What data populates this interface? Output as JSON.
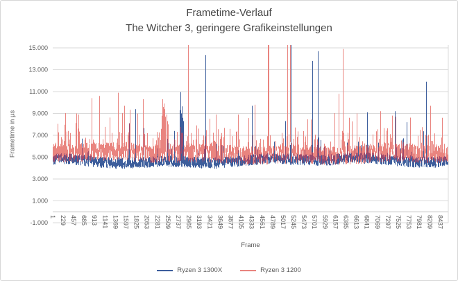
{
  "chart_data": {
    "type": "line",
    "title": "Frametime-Verlauf",
    "subtitle": "The Witcher 3, geringere Grafikeinstellungen",
    "xlabel": "Frame",
    "ylabel": "Frametime in µs",
    "x_ticks": [
      "1",
      "229",
      "457",
      "685",
      "913",
      "1141",
      "1369",
      "1597",
      "1825",
      "2053",
      "2281",
      "2509",
      "2737",
      "2965",
      "3193",
      "3421",
      "3649",
      "3877",
      "4105",
      "4333",
      "4561",
      "4789",
      "5017",
      "5245",
      "5473",
      "5701",
      "5929",
      "6157",
      "6385",
      "6613",
      "6841",
      "7069",
      "7297",
      "7525",
      "7753",
      "7981",
      "8209",
      "8437"
    ],
    "x_tick_step": 228,
    "x_range": [
      1,
      8608
    ],
    "y_ticks": [
      [
        15000,
        "15.000"
      ],
      [
        13000,
        "13.000"
      ],
      [
        11000,
        "11.000"
      ],
      [
        9000,
        "9.000"
      ],
      [
        7000,
        "7.000"
      ],
      [
        5000,
        "5.000"
      ],
      [
        3000,
        "3.000"
      ],
      [
        1000,
        "1.000"
      ],
      [
        -1000,
        "-1.000"
      ]
    ],
    "ylim": [
      -1000,
      15000
    ],
    "y_tick_interval": 2000,
    "grid": true,
    "legend_position": "bottom",
    "clip_value": 15254,
    "sampling_step": 4,
    "seed": 42,
    "grid_color": "#d9d9d9",
    "axis_color": "#c3c3c3",
    "text_color": "#595959",
    "overlap_color": "#9a4a6e",
    "series": [
      {
        "name": "Ryzen 3 1300X",
        "color": "#3d5e9c",
        "gen": {
          "mean": 4620,
          "wander": [
            [
              170,
              0.0035,
              2.6
            ],
            [
              110,
              0.0115,
              0.7
            ]
          ],
          "noise": 1050,
          "bias": 0.45,
          "minor_spikes": [
            {
              "p": 0.02,
              "min": 400,
              "max": 1700
            },
            {
              "p": 0.006,
              "min": 1500,
              "max": 2900
            }
          ]
        },
        "spikes": [
          [
            1661,
            8100
          ],
          [
            1797,
            9400
          ],
          [
            2640,
            7400
          ],
          [
            2763,
            9300
          ],
          [
            2790,
            10950
          ],
          [
            2803,
            9000
          ],
          [
            2815,
            9650
          ],
          [
            2830,
            8600
          ],
          [
            2850,
            8300
          ],
          [
            3322,
            14350
          ],
          [
            4333,
            9700
          ],
          [
            5060,
            8300
          ],
          [
            5178,
            15254
          ],
          [
            5647,
            13800
          ],
          [
            5768,
            14700
          ],
          [
            6840,
            9100
          ],
          [
            7444,
            9200
          ],
          [
            7700,
            8200
          ],
          [
            8124,
            11900
          ]
        ]
      },
      {
        "name": "Ryzen 3 1200",
        "color": "#e9847f",
        "gen": {
          "mean": 5420,
          "wander": [
            [
              140,
              0.0029,
              0.9
            ],
            [
              90,
              0.0127,
              3.8
            ]
          ],
          "noise": 1750,
          "bias": 0.55,
          "minor_spikes": [
            {
              "p": 0.1,
              "min": 350,
              "max": 1800
            },
            {
              "p": 0.02,
              "min": 1700,
              "max": 3400
            }
          ]
        },
        "spikes": [
          [
            513,
            9000
          ],
          [
            846,
            10400
          ],
          [
            1012,
            10600
          ],
          [
            1424,
            10900
          ],
          [
            1566,
            9700
          ],
          [
            1963,
            10300
          ],
          [
            2380,
            8800
          ],
          [
            2395,
            10300
          ],
          [
            2405,
            9600
          ],
          [
            2415,
            9900
          ],
          [
            2428,
            9200
          ],
          [
            2442,
            9400
          ],
          [
            2458,
            8700
          ],
          [
            2475,
            8900
          ],
          [
            2492,
            8300
          ],
          [
            2512,
            8000
          ],
          [
            2944,
            15254
          ],
          [
            3548,
            8900
          ],
          [
            4394,
            9800
          ],
          [
            4680,
            15254
          ],
          [
            4700,
            15254
          ],
          [
            5103,
            15254
          ],
          [
            5170,
            15254
          ],
          [
            6220,
            10800
          ],
          [
            6311,
            14900
          ],
          [
            6613,
            9000
          ],
          [
            7127,
            9200
          ],
          [
            8214,
            9700
          ],
          [
            8471,
            8600
          ]
        ]
      }
    ]
  },
  "legend": {
    "items": [
      {
        "label": "Ryzen 3 1300X"
      },
      {
        "label": "Ryzen 3 1200"
      }
    ]
  }
}
